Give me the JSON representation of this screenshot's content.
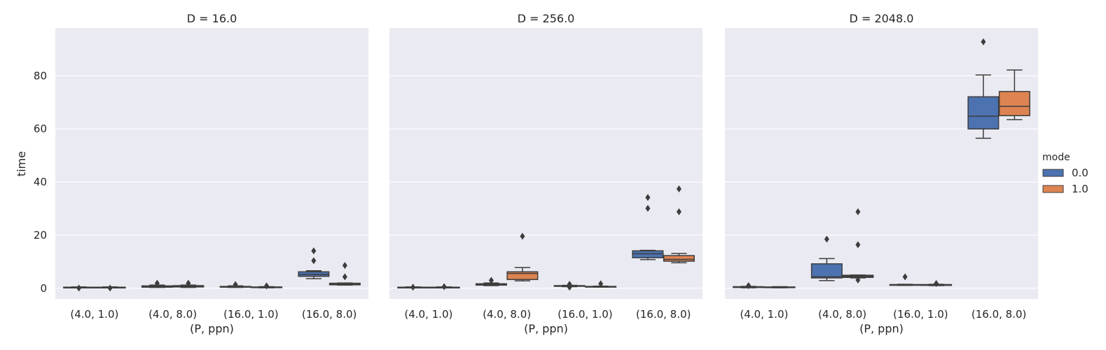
{
  "chart_data": {
    "type": "box",
    "ylabel": "time",
    "xlabel": "(P, ppn)",
    "ylim": [
      -4,
      98
    ],
    "yticks": [
      0,
      20,
      40,
      60,
      80
    ],
    "grid": true,
    "categories": [
      "(4.0, 1.0)",
      "(4.0, 8.0)",
      "(16.0, 1.0)",
      "(16.0, 8.0)"
    ],
    "hue": {
      "title": "mode",
      "levels": [
        {
          "name": "0.0",
          "color": "#4c72b0"
        },
        {
          "name": "1.0",
          "color": "#dd8452"
        }
      ]
    },
    "legend_position": "right",
    "panels": [
      {
        "title": "D = 16.0",
        "boxes": [
          {
            "category": "(4.0, 1.0)",
            "mode": "0.0",
            "whislo": 0.2,
            "q1": 0.2,
            "med": 0.3,
            "q3": 0.4,
            "whishi": 0.5,
            "fliers": [
              0.1
            ]
          },
          {
            "category": "(4.0, 1.0)",
            "mode": "1.0",
            "whislo": 0.2,
            "q1": 0.2,
            "med": 0.3,
            "q3": 0.4,
            "whishi": 0.5,
            "fliers": [
              0.1
            ]
          },
          {
            "category": "(4.0, 8.0)",
            "mode": "0.0",
            "whislo": 0.3,
            "q1": 0.4,
            "med": 0.6,
            "q3": 0.9,
            "whishi": 1.2,
            "fliers": [
              1.9
            ]
          },
          {
            "category": "(4.0, 8.0)",
            "mode": "1.0",
            "whislo": 0.3,
            "q1": 0.5,
            "med": 0.8,
            "q3": 1.0,
            "whishi": 1.2,
            "fliers": [
              1.9
            ]
          },
          {
            "category": "(16.0, 1.0)",
            "mode": "0.0",
            "whislo": 0.3,
            "q1": 0.4,
            "med": 0.6,
            "q3": 0.7,
            "whishi": 0.9,
            "fliers": [
              1.4
            ]
          },
          {
            "category": "(16.0, 1.0)",
            "mode": "1.0",
            "whislo": 0.2,
            "q1": 0.3,
            "med": 0.4,
            "q3": 0.5,
            "whishi": 0.6,
            "fliers": [
              0.9
            ]
          },
          {
            "category": "(16.0, 8.0)",
            "mode": "0.0",
            "whislo": 3.6,
            "q1": 4.5,
            "med": 5.2,
            "q3": 6.2,
            "whishi": 6.6,
            "fliers": [
              10.4,
              14.1
            ]
          },
          {
            "category": "(16.0, 8.0)",
            "mode": "1.0",
            "whislo": 1.2,
            "q1": 1.3,
            "med": 1.5,
            "q3": 1.9,
            "whishi": 2.0,
            "fliers": [
              4.3,
              8.6
            ]
          }
        ]
      },
      {
        "title": "D = 256.0",
        "boxes": [
          {
            "category": "(4.0, 1.0)",
            "mode": "0.0",
            "whislo": 0.2,
            "q1": 0.2,
            "med": 0.3,
            "q3": 0.4,
            "whishi": 0.5,
            "fliers": [
              0.4
            ]
          },
          {
            "category": "(4.0, 1.0)",
            "mode": "1.0",
            "whislo": 0.2,
            "q1": 0.2,
            "med": 0.3,
            "q3": 0.4,
            "whishi": 0.5,
            "fliers": [
              0.6
            ]
          },
          {
            "category": "(4.0, 8.0)",
            "mode": "0.0",
            "whislo": 1.0,
            "q1": 1.2,
            "med": 1.4,
            "q3": 1.7,
            "whishi": 2.0,
            "fliers": [
              3.0
            ]
          },
          {
            "category": "(4.0, 8.0)",
            "mode": "1.0",
            "whislo": 2.8,
            "q1": 3.3,
            "med": 5.6,
            "q3": 6.2,
            "whishi": 7.8,
            "fliers": [
              19.6
            ]
          },
          {
            "category": "(16.0, 1.0)",
            "mode": "0.0",
            "whislo": 0.6,
            "q1": 0.8,
            "med": 0.9,
            "q3": 1.0,
            "whishi": 1.1,
            "fliers": [
              0.4,
              1.5
            ]
          },
          {
            "category": "(16.0, 1.0)",
            "mode": "1.0",
            "whislo": 0.4,
            "q1": 0.5,
            "med": 0.6,
            "q3": 0.7,
            "whishi": 0.8,
            "fliers": [
              1.7
            ]
          },
          {
            "category": "(16.0, 8.0)",
            "mode": "0.0",
            "whislo": 10.8,
            "q1": 11.5,
            "med": 13.0,
            "q3": 14.1,
            "whishi": 14.3,
            "fliers": [
              30.1,
              34.2
            ]
          },
          {
            "category": "(16.0, 8.0)",
            "mode": "1.0",
            "whislo": 9.6,
            "q1": 10.2,
            "med": 10.9,
            "q3": 12.3,
            "whishi": 13.1,
            "fliers": [
              28.8,
              37.4
            ]
          }
        ]
      },
      {
        "title": "D = 2048.0",
        "boxes": [
          {
            "category": "(4.0, 1.0)",
            "mode": "0.0",
            "whislo": 0.2,
            "q1": 0.3,
            "med": 0.4,
            "q3": 0.6,
            "whishi": 0.7,
            "fliers": [
              1.0
            ]
          },
          {
            "category": "(4.0, 1.0)",
            "mode": "1.0",
            "whislo": 0.2,
            "q1": 0.3,
            "med": 0.4,
            "q3": 0.5,
            "whishi": 0.6,
            "fliers": []
          },
          {
            "category": "(4.0, 8.0)",
            "mode": "0.0",
            "whislo": 2.9,
            "q1": 3.9,
            "med": 4.3,
            "q3": 9.2,
            "whishi": 11.2,
            "fliers": [
              18.5
            ]
          },
          {
            "category": "(4.0, 8.0)",
            "mode": "1.0",
            "whislo": 3.9,
            "q1": 4.1,
            "med": 4.5,
            "q3": 4.9,
            "whishi": 5.0,
            "fliers": [
              3.1,
              16.4,
              28.8
            ]
          },
          {
            "category": "(16.0, 1.0)",
            "mode": "0.0",
            "whislo": 1.1,
            "q1": 1.2,
            "med": 1.3,
            "q3": 1.4,
            "whishi": 1.5,
            "fliers": [
              4.3
            ]
          },
          {
            "category": "(16.0, 1.0)",
            "mode": "1.0",
            "whislo": 1.0,
            "q1": 1.1,
            "med": 1.2,
            "q3": 1.4,
            "whishi": 1.5,
            "fliers": [
              1.8
            ]
          },
          {
            "category": "(16.0, 8.0)",
            "mode": "0.0",
            "whislo": 56.5,
            "q1": 60.0,
            "med": 64.8,
            "q3": 72.1,
            "whishi": 80.3,
            "fliers": [
              92.8
            ]
          },
          {
            "category": "(16.0, 8.0)",
            "mode": "1.0",
            "whislo": 63.5,
            "q1": 65.0,
            "med": 68.5,
            "q3": 74.1,
            "whishi": 82.2,
            "fliers": []
          }
        ]
      }
    ]
  }
}
